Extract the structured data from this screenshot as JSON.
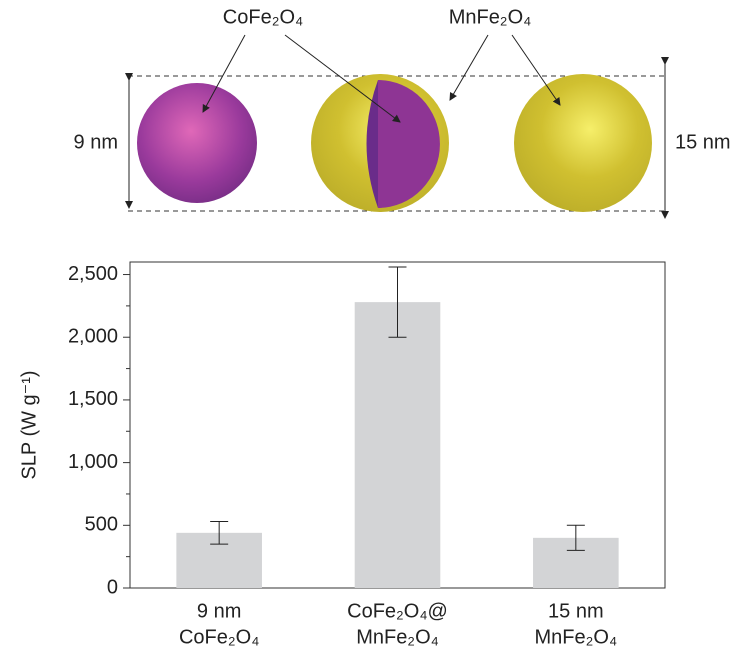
{
  "illustration": {
    "labels": [
      "CoFe₂O₄",
      "MnFe₂O₄"
    ],
    "small_size": "9 nm",
    "large_size": "15 nm"
  },
  "chart_data": {
    "type": "bar",
    "categories": [
      [
        "9 nm",
        "CoFe₂O₄"
      ],
      [
        "CoFe₂O₄@",
        "MnFe₂O₄"
      ],
      [
        "15 nm",
        "MnFe₂O₄"
      ]
    ],
    "values": [
      440,
      2280,
      400
    ],
    "errors": [
      90,
      280,
      100
    ],
    "color": "#d3d4d6",
    "y_label": "SLP (W g⁻¹)",
    "ylim": [
      0,
      2600
    ],
    "yticks": [
      0,
      500,
      {
        "value": 1000,
        "label": "1,000"
      },
      {
        "value": 1500,
        "label": "1,500"
      },
      {
        "value": 2000,
        "label": "2,000"
      },
      {
        "value": 2500,
        "label": "2,500"
      }
    ],
    "y_minor_ticks": [
      250,
      750,
      1250,
      1750,
      2250
    ]
  }
}
